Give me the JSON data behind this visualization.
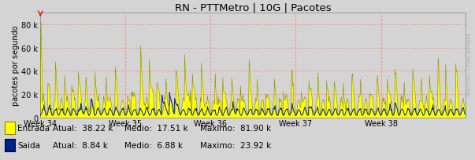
{
  "title": "RN - PTTMetro | 10G | Pacotes",
  "ylabel": "pacotes por segundo",
  "ylim": [
    0,
    90000
  ],
  "yticks": [
    0,
    20000,
    40000,
    60000,
    80000
  ],
  "ytick_labels": [
    "0",
    "20 k",
    "40 k",
    "60 k",
    "80 k"
  ],
  "week_labels": [
    "Week 34",
    "Week 35",
    "Week 36",
    "Week 37",
    "Week 38"
  ],
  "bg_color": "#d4d4d4",
  "plot_bg_color": "#d4d4d4",
  "grid_color": "#ff8888",
  "entrada_color": "#ffff00",
  "entrada_line_color": "#888800",
  "saida_color": "#002288",
  "legend_entrada": "Entrada",
  "legend_saida": "Saida",
  "atual_entrada": "38.22 k",
  "medio_entrada": "17.51 k",
  "maximo_entrada": "81.90 k",
  "atual_saida": "8.84 k",
  "medio_saida": "6.88 k",
  "maximo_saida": "23.92 k",
  "n_points": 840,
  "seed": 12345
}
